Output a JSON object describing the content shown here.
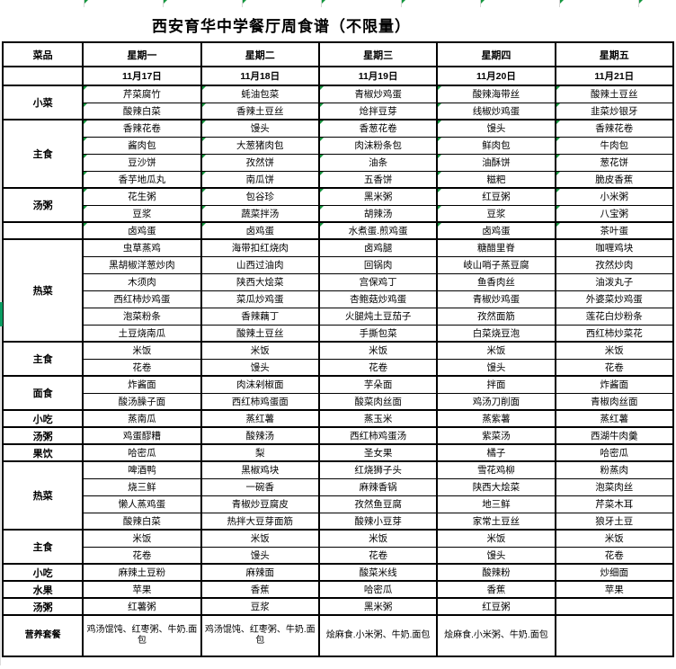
{
  "title": "西安育华中学餐厅周食谱（不限量）",
  "colors": {
    "comment_triangle": "#15973f",
    "left_edge_marker": "#0a9d62",
    "grid": "#000000"
  },
  "table": {
    "corner_header": "菜品",
    "day_headers": [
      "星期一",
      "星期二",
      "星期三",
      "星期四",
      "星期五"
    ],
    "dates": [
      "11月17日",
      "11月18日",
      "11月19日",
      "11月20日",
      "11月21日"
    ],
    "sections": [
      {
        "category": "小菜",
        "comment_marks": true,
        "rows": [
          [
            "芹菜腐竹",
            "蚝油包菜",
            "青椒炒鸡蛋",
            "酸辣海带丝",
            "酸辣土豆丝"
          ],
          [
            "酸辣白菜",
            "香辣土豆丝",
            "炝拌豆芽",
            "线椒炒鸡蛋",
            "韭菜炒银牙"
          ]
        ]
      },
      {
        "category": "主食",
        "comment_marks": true,
        "rows": [
          [
            "香辣花卷",
            "馒头",
            "香葱花卷",
            "馒头",
            "香辣花卷"
          ],
          [
            "酱肉包",
            "大葱猪肉包",
            "肉沫粉条包",
            "鲜肉包",
            "牛肉包"
          ],
          [
            "豆沙饼",
            "孜然饼",
            "油条",
            "油酥饼",
            "葱花饼"
          ],
          [
            "香芋地瓜丸",
            "南瓜饼",
            "五香饼",
            "糍粑",
            "脆皮香蕉"
          ]
        ]
      },
      {
        "category": "汤粥",
        "comment_marks": true,
        "rows": [
          [
            "花生粥",
            "包谷珍",
            "黑米粥",
            "红豆粥",
            "小米粥"
          ],
          [
            "豆浆",
            "蔬菜拌汤",
            "胡辣汤",
            "豆浆",
            "八宝粥"
          ]
        ]
      },
      {
        "category": "",
        "comment_marks": true,
        "rows": [
          [
            "卤鸡蛋",
            "卤鸡蛋",
            "水煮蛋.煎鸡蛋",
            "卤鸡蛋",
            "茶叶蛋"
          ]
        ]
      },
      {
        "category": "热菜",
        "comment_marks": false,
        "rows": [
          [
            "虫草蒸鸡",
            "海带扣红烧肉",
            "卤鸡腿",
            "糖醋里脊",
            "咖喱鸡块"
          ],
          [
            "黑胡椒洋葱炒肉",
            "山西过油肉",
            "回锅肉",
            "岐山哨子蒸豆腐",
            "孜然炒肉"
          ],
          [
            "木须肉",
            "陕西大烩菜",
            "宫保鸡丁",
            "鱼香肉丝",
            "油泼丸子"
          ],
          [
            "西红柿炒鸡蛋",
            "菜瓜炒鸡蛋",
            "杏鲍菇炒鸡蛋",
            "青椒炒鸡蛋",
            "外婆菜炒鸡蛋"
          ],
          [
            "泡菜粉条",
            "香辣藕丁",
            "火腿炖土豆茄子",
            "孜然面筋",
            "莲花白炒粉条"
          ],
          [
            "土豆烧南瓜",
            "酸辣土豆丝",
            "手撕包菜",
            "白菜烧豆泡",
            "西红柿炒菜花"
          ]
        ]
      },
      {
        "category": "主食",
        "comment_marks": false,
        "rows": [
          [
            "米饭",
            "米饭",
            "米饭",
            "米饭",
            "米饭"
          ],
          [
            "花卷",
            "馒头",
            "花卷",
            "馒头",
            "花卷"
          ]
        ]
      },
      {
        "category": "面食",
        "comment_marks": false,
        "rows": [
          [
            "炸酱面",
            "肉沫剁椒面",
            "芋朵面",
            "拌面",
            "炸酱面"
          ],
          [
            "酸汤臊子面",
            "西红柿鸡蛋面",
            "酸菜肉丝面",
            "鸡汤刀削面",
            "青椒肉丝面"
          ]
        ]
      },
      {
        "category": "小吃",
        "comment_marks": false,
        "rows": [
          [
            "蒸南瓜",
            "蒸红薯",
            "蒸玉米",
            "蒸紫薯",
            "蒸红薯"
          ]
        ]
      },
      {
        "category": "汤粥",
        "comment_marks": false,
        "rows": [
          [
            "鸡蛋醪糟",
            "酸辣汤",
            "西红柿鸡蛋汤",
            "紫菜汤",
            "西湖牛肉羹"
          ]
        ]
      },
      {
        "category": "果饮",
        "comment_marks": false,
        "rows": [
          [
            "哈密瓜",
            "梨",
            "圣女果",
            "橘子",
            "哈密瓜"
          ]
        ]
      },
      {
        "category": "热菜",
        "comment_marks": false,
        "rows": [
          [
            "啤酒鸭",
            "黑椒鸡块",
            "红烧狮子头",
            "雪花鸡柳",
            "粉蒸肉"
          ],
          [
            "烧三鲜",
            "一碗香",
            "麻辣香锅",
            "陕西大烩菜",
            "泡菜肉丝"
          ],
          [
            "懒人蒸鸡蛋",
            "青椒炒豆腐皮",
            "孜然鱼豆腐",
            "地三鲜",
            "芹菜木耳"
          ],
          [
            "酸辣白菜",
            "热拌大豆芽面筋",
            "酸辣小豆芽",
            "家常土豆丝",
            "狼牙土豆"
          ]
        ]
      },
      {
        "category": "主食",
        "comment_marks": false,
        "rows": [
          [
            "米饭",
            "米饭",
            "米饭",
            "米饭",
            "米饭"
          ],
          [
            "花卷",
            "馒头",
            "花卷",
            "馒头",
            "花卷"
          ]
        ]
      },
      {
        "category": "小吃",
        "comment_marks": false,
        "rows": [
          [
            "麻辣土豆粉",
            "麻辣面",
            "酸菜米线",
            "酸辣粉",
            "炒细面"
          ]
        ]
      },
      {
        "category": "水果",
        "comment_marks": false,
        "rows": [
          [
            "苹果",
            "香蕉",
            "哈密瓜",
            "香蕉",
            "苹果"
          ]
        ]
      },
      {
        "category": "汤粥",
        "comment_marks": false,
        "rows": [
          [
            "红薯粥",
            "豆浆",
            "黑米粥",
            "红豆粥",
            ""
          ]
        ]
      },
      {
        "category": "营养套餐",
        "comment_marks": false,
        "tall": true,
        "rows": [
          [
            "鸡汤馄饨、红枣粥、牛奶.面包",
            "鸡汤馄饨、红枣粥、牛奶.面包",
            "烩麻食.小米粥、牛奶.面包",
            "烩麻食.小米粥、牛奶.面包",
            ""
          ]
        ]
      }
    ]
  }
}
